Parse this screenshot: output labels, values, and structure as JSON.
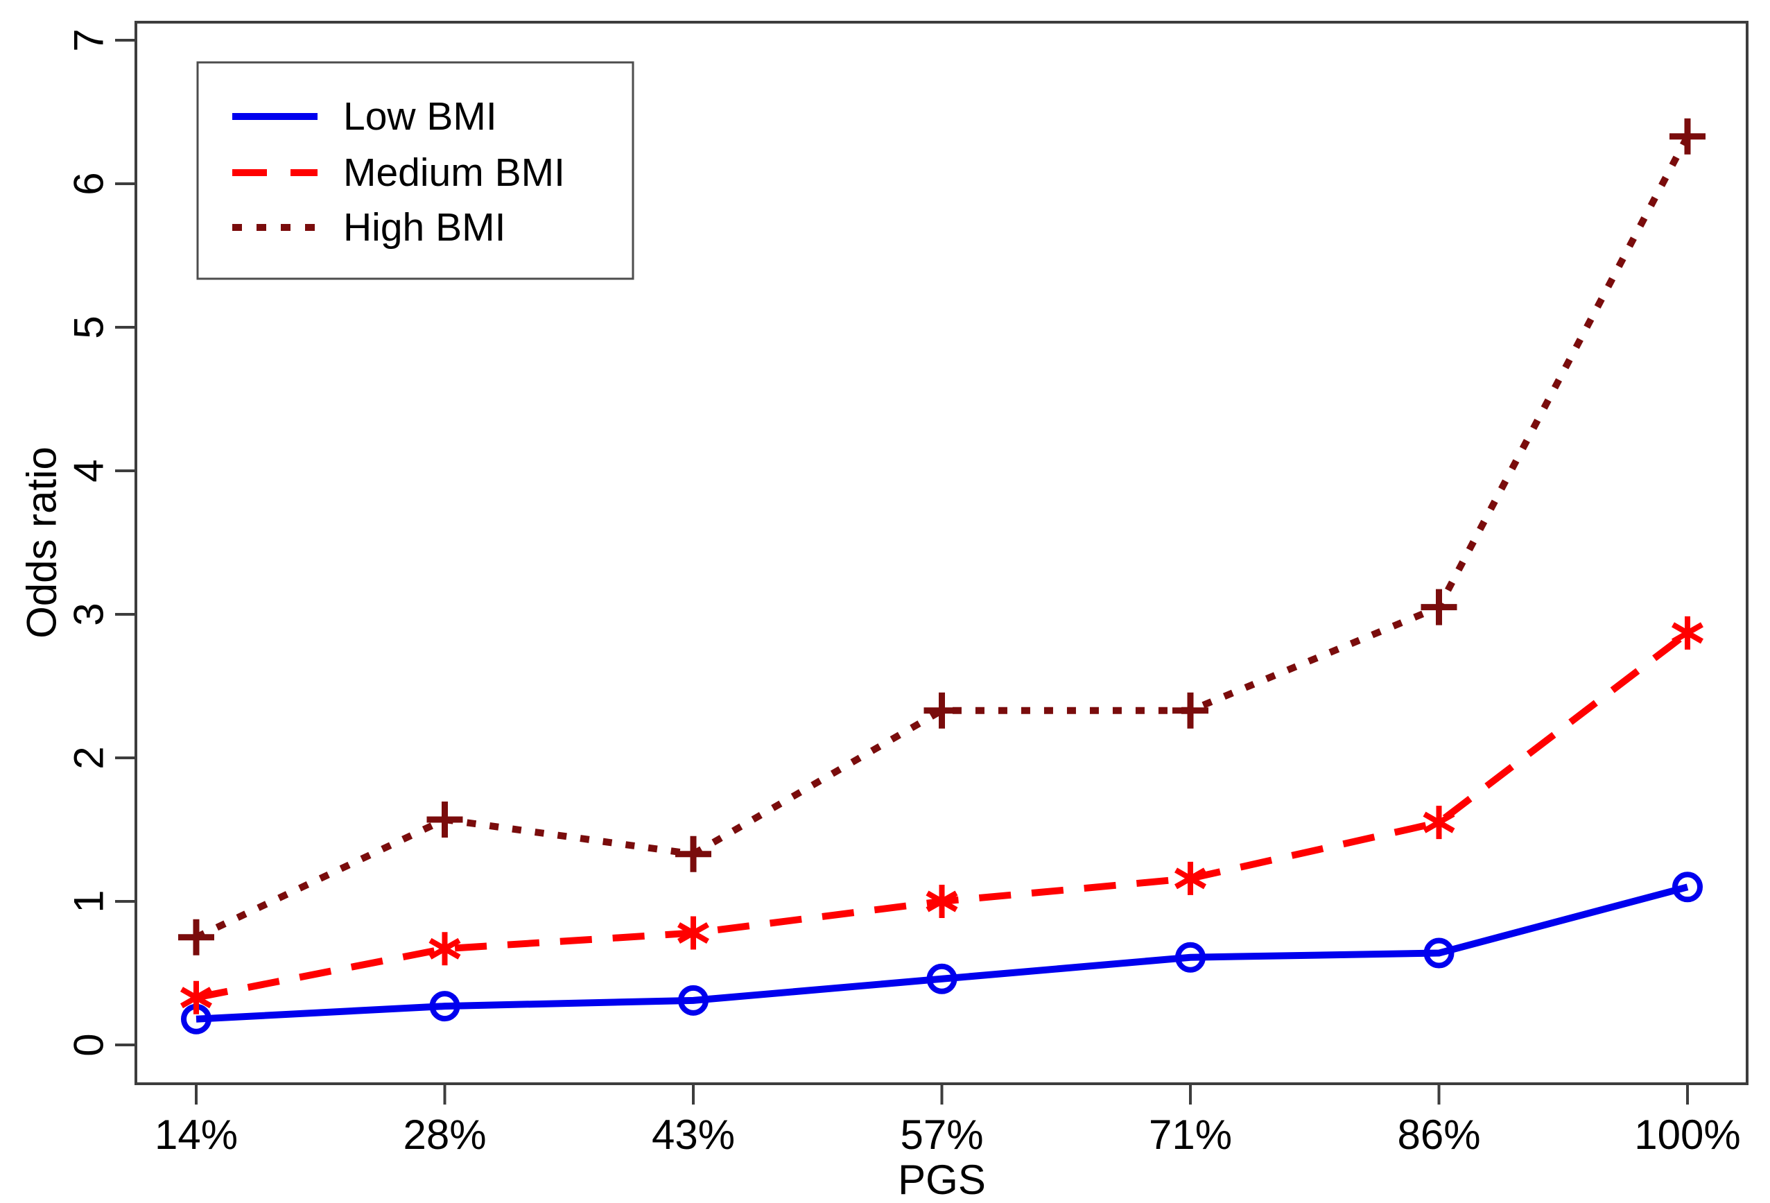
{
  "chart_data": {
    "type": "line",
    "title": "",
    "xlabel": "PGS",
    "ylabel": "Odds ratio",
    "categories": [
      "14%",
      "28%",
      "43%",
      "57%",
      "71%",
      "86%",
      "100%"
    ],
    "y_ticks": [
      "0",
      "1",
      "2",
      "3",
      "4",
      "5",
      "6",
      "7"
    ],
    "ylim": [
      0,
      7
    ],
    "grid": false,
    "legend": {
      "position": "top-left",
      "entries": [
        "Low BMI",
        "Medium BMI",
        "High BMI"
      ]
    },
    "axis_color": "#3d3d3d",
    "series": [
      {
        "name": "Low BMI",
        "color": "#0000ee",
        "line_style": "solid",
        "marker": "circle",
        "values": [
          0.18,
          0.27,
          0.31,
          0.46,
          0.61,
          0.64,
          1.1
        ]
      },
      {
        "name": "Medium BMI",
        "color": "#ff0000",
        "line_style": "dashed",
        "marker": "asterisk",
        "values": [
          0.33,
          0.67,
          0.78,
          1.0,
          1.16,
          1.55,
          2.87
        ]
      },
      {
        "name": "High BMI",
        "color": "#7a0c0c",
        "line_style": "dotted",
        "marker": "plus",
        "values": [
          0.75,
          1.57,
          1.33,
          2.33,
          2.33,
          3.05,
          6.33
        ]
      }
    ]
  }
}
